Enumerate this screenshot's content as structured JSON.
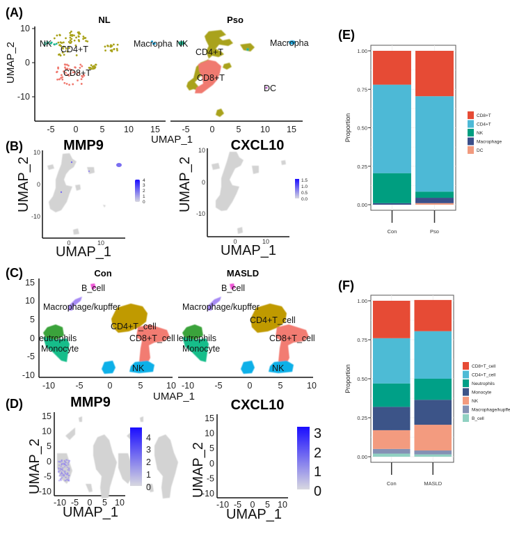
{
  "panels": {
    "A": {
      "label": "(A)",
      "plots": [
        {
          "title": "NL",
          "x_ticks": [
            "-5",
            "0",
            "5",
            "10",
            "15"
          ],
          "y_ticks": [
            "10",
            "0",
            "-10"
          ],
          "ylabel": "UMAP_2",
          "clusters": [
            "NK",
            "CD4+T",
            "CD8+T",
            "Macropha"
          ]
        },
        {
          "title": "Pso",
          "x_ticks": [
            "-5",
            "0",
            "5",
            "10",
            "15"
          ],
          "clusters": [
            "NK",
            "CD4+T",
            "CD8+T",
            "Macropha",
            "DC"
          ]
        }
      ],
      "xlabel": "UMAP_1"
    },
    "B": {
      "label": "(B)",
      "plots": [
        {
          "title": "MMP9",
          "x_ticks": [
            "0",
            "10"
          ],
          "y_ticks": [
            "10",
            "0",
            "-10"
          ],
          "xlabel": "UMAP_1",
          "ylabel": "UMAP_2",
          "scale": [
            "4",
            "3",
            "2",
            "1",
            "0"
          ]
        },
        {
          "title": "CXCL10",
          "x_ticks": [
            "0",
            "10"
          ],
          "y_ticks": [
            "10",
            "0",
            "-10"
          ],
          "xlabel": "UMAP_1",
          "ylabel": "UMAP_2",
          "scale": [
            "1.5",
            "1.0",
            "0.5",
            "0.0"
          ]
        }
      ]
    },
    "C": {
      "label": "(C)",
      "plots": [
        {
          "title": "Con",
          "x_ticks": [
            "-10",
            "-5",
            "0",
            "5",
            "10"
          ],
          "y_ticks": [
            "15",
            "10",
            "5",
            "0",
            "-5",
            "-10"
          ],
          "clusters": [
            "B_cell",
            "Macrophage/kupffer",
            "CD4+T_cell",
            "eutrophils",
            "CD8+T_cell",
            "Monocyte",
            "NK"
          ]
        },
        {
          "title": "MASLD",
          "x_ticks": [
            "-10",
            "-5",
            "0",
            "5",
            "10"
          ],
          "clusters": [
            "B_cell",
            "Macrophage/kupffer",
            "CD4+T_cell",
            "leutrophils",
            "CD8+T_cell",
            "Monocyte",
            "NK"
          ]
        }
      ],
      "xlabel": "UMAP_1"
    },
    "D": {
      "label": "(D)",
      "plots": [
        {
          "title": "MMP9",
          "x_ticks": [
            "-10",
            "-5",
            "0",
            "5",
            "10"
          ],
          "y_ticks": [
            "15",
            "10",
            "5",
            "0",
            "-5",
            "-10"
          ],
          "xlabel": "UMAP_1",
          "ylabel": "UMAP_2",
          "scale": [
            "4",
            "3",
            "2",
            "1",
            "0"
          ]
        },
        {
          "title": "CXCL10",
          "x_ticks": [
            "-10",
            "-5",
            "0",
            "5",
            "10"
          ],
          "y_ticks": [
            "15",
            "10",
            "5",
            "0",
            "-5",
            "-10"
          ],
          "xlabel": "UMAP_1",
          "ylabel": "UMAP_2",
          "scale": [
            "3",
            "2",
            "1",
            "0"
          ]
        }
      ]
    },
    "E": {
      "label": "(E)"
    },
    "F": {
      "label": "(F)"
    }
  },
  "colors": {
    "gradient_low": "#d3d3d3",
    "gradient_high": "#1a0dff",
    "nk_a": "#1fb58f",
    "cd4_a": "#a9a21a",
    "cd8_a": "#f07a70",
    "mac_a": "#1aa7e0",
    "dc_a": "#b04cc0",
    "cd4_c": "#c09a06",
    "cd8_c": "#f27b72",
    "nk_c": "#11b0e8",
    "neut_c": "#3aa33a",
    "mono_c": "#16bd8a",
    "mac_c": "#a78bf5",
    "b_c": "#ee55d6"
  },
  "chart_data": [
    {
      "type": "bar",
      "stacked": true,
      "panel": "E",
      "title": "",
      "xlabel": "",
      "ylabel": "Proportion",
      "ylim": [
        0,
        1
      ],
      "y_ticks": [
        "0.00",
        "0.25",
        "0.50",
        "0.75",
        "1.00"
      ],
      "categories": [
        "Con",
        "Pso"
      ],
      "legend_position": "right",
      "series": [
        {
          "name": "DC",
          "color": "#f19a7e",
          "values": [
            0.0,
            0.01
          ]
        },
        {
          "name": "Macrophage",
          "color": "#3b4f8a",
          "values": [
            0.01,
            0.035
          ]
        },
        {
          "name": "NK",
          "color": "#009e80",
          "values": [
            0.195,
            0.04
          ]
        },
        {
          "name": "CD4+T",
          "color": "#4db9d6",
          "values": [
            0.575,
            0.62
          ]
        },
        {
          "name": "CD8+T",
          "color": "#e64b35",
          "values": [
            0.22,
            0.295
          ]
        }
      ],
      "legend_order": [
        "CD8+T",
        "CD4+T",
        "NK",
        "Macrophage",
        "DC"
      ]
    },
    {
      "type": "bar",
      "stacked": true,
      "panel": "F",
      "title": "",
      "xlabel": "",
      "ylabel": "Proportion",
      "ylim": [
        0,
        1
      ],
      "y_ticks": [
        "0.00",
        "0.25",
        "0.50",
        "0.75",
        "1.00"
      ],
      "categories": [
        "Con",
        "MASLD"
      ],
      "legend_position": "right",
      "series": [
        {
          "name": "B_cell",
          "color": "#91d1c2",
          "values": [
            0.02,
            0.015
          ]
        },
        {
          "name": "Macrophage/kupffer",
          "color": "#8491b4",
          "values": [
            0.03,
            0.025
          ]
        },
        {
          "name": "NK",
          "color": "#f39b7f",
          "values": [
            0.12,
            0.165
          ]
        },
        {
          "name": "Monocyte",
          "color": "#3c5488",
          "values": [
            0.15,
            0.16
          ]
        },
        {
          "name": "Neutrophils",
          "color": "#00a087",
          "values": [
            0.15,
            0.135
          ]
        },
        {
          "name": "CD4+T_cell",
          "color": "#4dbbd5",
          "values": [
            0.29,
            0.305
          ]
        },
        {
          "name": "CD8+T_cell",
          "color": "#e64b35",
          "values": [
            0.24,
            0.2
          ]
        }
      ],
      "legend_order": [
        "CD8+T_cell",
        "CD4+T_cell",
        "Neutrophils",
        "Monocyte",
        "NK",
        "Macrophage/kupffer",
        "B_cell"
      ]
    }
  ]
}
